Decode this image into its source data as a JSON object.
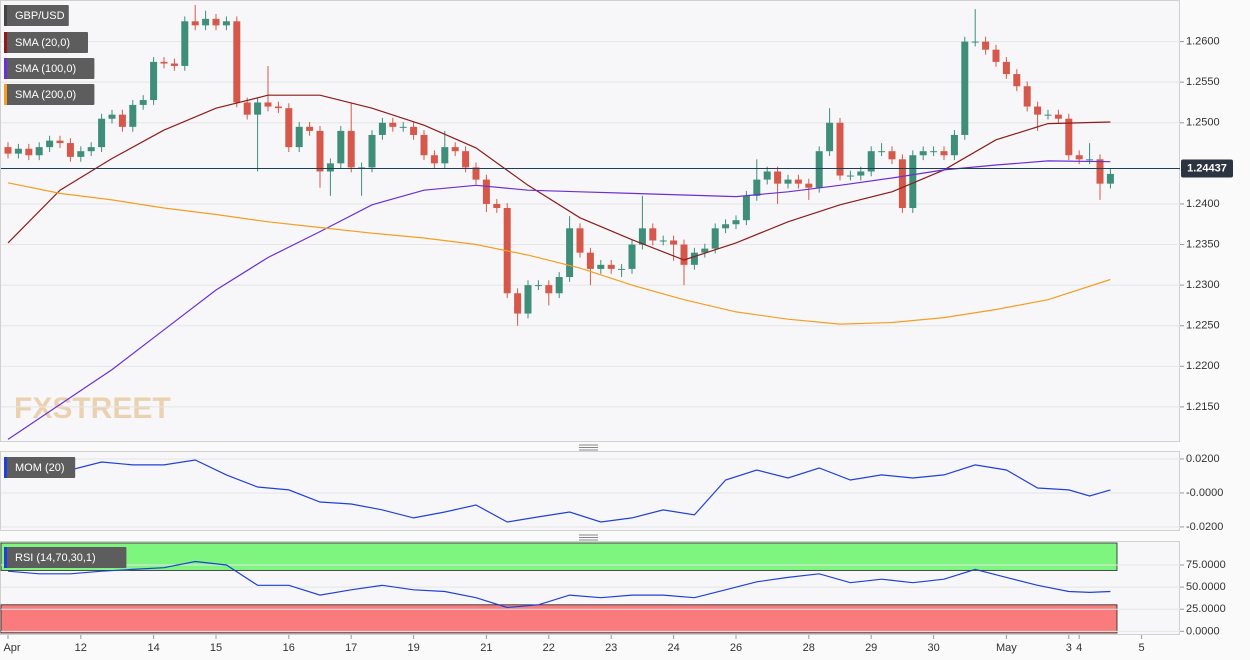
{
  "chart_data": [
    {
      "type": "candlestick",
      "title": "GBP/USD",
      "watermark": "FXSTREET",
      "categories": [
        "Apr",
        null,
        null,
        null,
        null,
        null,
        null,
        "12",
        null,
        null,
        null,
        null,
        null,
        null,
        "14",
        null,
        null,
        null,
        null,
        null,
        "15",
        null,
        null,
        null,
        null,
        null,
        null,
        "16",
        null,
        null,
        null,
        null,
        null,
        "17",
        null,
        null,
        null,
        null,
        null,
        "19",
        null,
        null,
        null,
        null,
        null,
        null,
        "21",
        null,
        null,
        null,
        null,
        null,
        "22",
        null,
        null,
        null,
        null,
        null,
        "23",
        null,
        null,
        null,
        null,
        null,
        "24",
        null,
        null,
        null,
        null,
        null,
        "26",
        null,
        null,
        null,
        null,
        null,
        null,
        "28",
        null,
        null,
        null,
        null,
        null,
        "29",
        null,
        null,
        null,
        null,
        null,
        "30",
        null,
        null,
        null,
        null,
        null,
        null,
        "May",
        null,
        null,
        null,
        null,
        null,
        "3",
        "4",
        null,
        null,
        null,
        null,
        null,
        "5"
      ],
      "candles": [
        [
          1.247,
          1.2476,
          1.2456,
          1.2462
        ],
        [
          1.2462,
          1.2474,
          1.2456,
          1.2468
        ],
        [
          1.2468,
          1.2474,
          1.2454,
          1.246
        ],
        [
          1.246,
          1.2476,
          1.2454,
          1.247
        ],
        [
          1.247,
          1.2484,
          1.2464,
          1.2478
        ],
        [
          1.2478,
          1.2484,
          1.2469,
          1.2475
        ],
        [
          1.2475,
          1.2481,
          1.2452,
          1.2458
        ],
        [
          1.2458,
          1.2471,
          1.2452,
          1.2465
        ],
        [
          1.2465,
          1.2476,
          1.2459,
          1.247
        ],
        [
          1.247,
          1.2511,
          1.2464,
          1.2505
        ],
        [
          1.2505,
          1.2516,
          1.2499,
          1.251
        ],
        [
          1.251,
          1.2516,
          1.2489,
          1.2495
        ],
        [
          1.2495,
          1.2528,
          1.2489,
          1.2522
        ],
        [
          1.2522,
          1.2534,
          1.2516,
          1.2528
        ],
        [
          1.2528,
          1.2581,
          1.2522,
          1.2575
        ],
        [
          1.2575,
          1.2581,
          1.2567,
          1.2573
        ],
        [
          1.2573,
          1.2579,
          1.2564,
          1.257
        ],
        [
          1.257,
          1.2631,
          1.2564,
          1.2625
        ],
        [
          1.2625,
          1.2645,
          1.2614,
          1.262
        ],
        [
          1.262,
          1.2638,
          1.2614,
          1.2628
        ],
        [
          1.2628,
          1.2634,
          1.2614,
          1.262
        ],
        [
          1.262,
          1.2631,
          1.2614,
          1.2625
        ],
        [
          1.2625,
          1.2631,
          1.2519,
          1.2525
        ],
        [
          1.2525,
          1.2531,
          1.2504,
          1.251
        ],
        [
          1.251,
          1.2531,
          1.244,
          1.2525
        ],
        [
          1.2525,
          1.257,
          1.2514,
          1.252
        ],
        [
          1.252,
          1.2526,
          1.2512,
          1.2518
        ],
        [
          1.2518,
          1.2524,
          1.2464,
          1.247
        ],
        [
          1.247,
          1.2501,
          1.2464,
          1.2495
        ],
        [
          1.2495,
          1.2501,
          1.2484,
          1.249
        ],
        [
          1.249,
          1.2496,
          1.242,
          1.244
        ],
        [
          1.244,
          1.2456,
          1.241,
          1.245
        ],
        [
          1.245,
          1.2496,
          1.2444,
          1.249
        ],
        [
          1.249,
          1.2525,
          1.2439,
          1.2445
        ],
        [
          1.2445,
          1.2451,
          1.241,
          1.2445
        ],
        [
          1.2445,
          1.2491,
          1.2439,
          1.2485
        ],
        [
          1.2485,
          1.2506,
          1.2479,
          1.25
        ],
        [
          1.25,
          1.2506,
          1.2489,
          1.2495
        ],
        [
          1.2495,
          1.2501,
          1.2489,
          1.2495
        ],
        [
          1.2495,
          1.2501,
          1.2479,
          1.2485
        ],
        [
          1.2485,
          1.2491,
          1.2454,
          1.246
        ],
        [
          1.246,
          1.2466,
          1.2444,
          1.245
        ],
        [
          1.245,
          1.249,
          1.2444,
          1.247
        ],
        [
          1.247,
          1.2476,
          1.2459,
          1.2465
        ],
        [
          1.2465,
          1.2471,
          1.2439,
          1.2445
        ],
        [
          1.2445,
          1.2451,
          1.2424,
          1.243
        ],
        [
          1.243,
          1.2436,
          1.239,
          1.24
        ],
        [
          1.24,
          1.2406,
          1.2389,
          1.2395
        ],
        [
          1.2395,
          1.2401,
          1.2284,
          1.229
        ],
        [
          1.229,
          1.2296,
          1.225,
          1.2265
        ],
        [
          1.2265,
          1.2306,
          1.2259,
          1.23
        ],
        [
          1.23,
          1.2306,
          1.2294,
          1.23
        ],
        [
          1.23,
          1.2306,
          1.2275,
          1.229
        ],
        [
          1.229,
          1.2316,
          1.2284,
          1.231
        ],
        [
          1.231,
          1.2385,
          1.2304,
          1.237
        ],
        [
          1.237,
          1.2376,
          1.2334,
          1.234
        ],
        [
          1.234,
          1.2346,
          1.23,
          1.232
        ],
        [
          1.232,
          1.2331,
          1.2314,
          1.2325
        ],
        [
          1.2325,
          1.2331,
          1.2314,
          1.232
        ],
        [
          1.232,
          1.2326,
          1.231,
          1.232
        ],
        [
          1.232,
          1.2356,
          1.2314,
          1.235
        ],
        [
          1.235,
          1.241,
          1.2344,
          1.237
        ],
        [
          1.237,
          1.2376,
          1.2349,
          1.2355
        ],
        [
          1.2355,
          1.2361,
          1.2349,
          1.2355
        ],
        [
          1.2355,
          1.2361,
          1.233,
          1.235
        ],
        [
          1.235,
          1.2356,
          1.23,
          1.2325
        ],
        [
          1.2325,
          1.2346,
          1.2319,
          1.234
        ],
        [
          1.234,
          1.2351,
          1.2334,
          1.2345
        ],
        [
          1.2345,
          1.2376,
          1.2339,
          1.237
        ],
        [
          1.237,
          1.2381,
          1.2364,
          1.2375
        ],
        [
          1.2375,
          1.2386,
          1.2369,
          1.238
        ],
        [
          1.238,
          1.2416,
          1.2374,
          1.241
        ],
        [
          1.241,
          1.2455,
          1.2404,
          1.243
        ],
        [
          1.243,
          1.2446,
          1.2424,
          1.244
        ],
        [
          1.244,
          1.2446,
          1.24,
          1.2425
        ],
        [
          1.2425,
          1.2436,
          1.2419,
          1.243
        ],
        [
          1.243,
          1.2436,
          1.2419,
          1.2425
        ],
        [
          1.2425,
          1.2431,
          1.2405,
          1.242
        ],
        [
          1.242,
          1.2471,
          1.2414,
          1.2465
        ],
        [
          1.2465,
          1.2518,
          1.2459,
          1.25
        ],
        [
          1.25,
          1.2506,
          1.2429,
          1.2435
        ],
        [
          1.2435,
          1.2441,
          1.2429,
          1.2435
        ],
        [
          1.2435,
          1.2446,
          1.2429,
          1.244
        ],
        [
          1.244,
          1.2471,
          1.2434,
          1.2465
        ],
        [
          1.2465,
          1.2475,
          1.2459,
          1.2465
        ],
        [
          1.2465,
          1.2471,
          1.2449,
          1.2455
        ],
        [
          1.2455,
          1.2461,
          1.2389,
          1.2395
        ],
        [
          1.2395,
          1.2466,
          1.2389,
          1.246
        ],
        [
          1.246,
          1.2471,
          1.2454,
          1.2465
        ],
        [
          1.2465,
          1.2471,
          1.2459,
          1.2465
        ],
        [
          1.2465,
          1.2471,
          1.2454,
          1.246
        ],
        [
          1.246,
          1.2491,
          1.2454,
          1.2485
        ],
        [
          1.2485,
          1.2606,
          1.2479,
          1.26
        ],
        [
          1.26,
          1.264,
          1.2594,
          1.26
        ],
        [
          1.26,
          1.2606,
          1.2584,
          1.259
        ],
        [
          1.259,
          1.2596,
          1.2569,
          1.2575
        ],
        [
          1.2575,
          1.2581,
          1.2554,
          1.256
        ],
        [
          1.256,
          1.2566,
          1.2539,
          1.2545
        ],
        [
          1.2545,
          1.2551,
          1.2514,
          1.252
        ],
        [
          1.252,
          1.2526,
          1.249,
          1.251
        ],
        [
          1.251,
          1.2516,
          1.2504,
          1.251
        ],
        [
          1.251,
          1.2516,
          1.2499,
          1.2505
        ],
        [
          1.2505,
          1.2511,
          1.2454,
          1.246
        ],
        [
          1.246,
          1.2466,
          1.2449,
          1.2455
        ],
        [
          1.2455,
          1.2475,
          1.2449,
          1.2455
        ],
        [
          1.2455,
          1.2461,
          1.2405,
          1.2425
        ],
        [
          1.2425,
          1.2443,
          1.2419,
          1.2437
        ],
        null,
        null,
        null
      ],
      "up_color": "#3e8e7a",
      "down_color": "#d5584a",
      "series": [
        {
          "name": "SMA (20,0)",
          "color": "#8e1b1b",
          "x": [
            0,
            5,
            10,
            15,
            20,
            25,
            30,
            35,
            40,
            45,
            50,
            55,
            60,
            65,
            70,
            75,
            80,
            85,
            90,
            95,
            100,
            106
          ],
          "values": [
            1.2352,
            1.2417,
            1.2456,
            1.2491,
            1.2518,
            1.2534,
            1.2534,
            1.2518,
            1.2497,
            1.2469,
            1.2423,
            1.2383,
            1.2356,
            1.2331,
            1.2352,
            1.2378,
            1.2399,
            1.2415,
            1.2442,
            1.2479,
            1.2499,
            1.2501
          ]
        },
        {
          "name": "SMA (100,0)",
          "color": "#6a2fd6",
          "x": [
            0,
            5,
            10,
            15,
            20,
            25,
            30,
            35,
            40,
            45,
            50,
            55,
            60,
            65,
            70,
            75,
            80,
            85,
            90,
            95,
            100,
            106
          ],
          "values": [
            1.211,
            1.2153,
            1.2196,
            1.2245,
            1.2294,
            1.2334,
            1.2366,
            1.2399,
            1.2417,
            1.2423,
            1.2417,
            1.2415,
            1.2413,
            1.2411,
            1.2409,
            1.2415,
            1.2423,
            1.2432,
            1.2442,
            1.2448,
            1.2453,
            1.2452
          ]
        },
        {
          "name": "SMA (200,0)",
          "color": "#f59e22",
          "x": [
            0,
            5,
            10,
            15,
            20,
            25,
            30,
            35,
            40,
            45,
            50,
            55,
            60,
            65,
            70,
            75,
            80,
            85,
            90,
            95,
            100,
            106
          ],
          "values": [
            1.2426,
            1.2413,
            1.2405,
            1.2395,
            1.2387,
            1.2378,
            1.2371,
            1.2364,
            1.2358,
            1.235,
            1.2337,
            1.2321,
            1.23,
            1.2282,
            1.2267,
            1.2258,
            1.2252,
            1.2254,
            1.226,
            1.227,
            1.2282,
            1.2307
          ]
        }
      ],
      "last_value": 1.24437,
      "ylim": [
        1.2108,
        1.265
      ],
      "yticks": [
        {
          "value": 1.215,
          "label": "1.2150"
        },
        {
          "value": 1.22,
          "label": "1.2200"
        },
        {
          "value": 1.225,
          "label": "1.2250"
        },
        {
          "value": 1.23,
          "label": "1.2300"
        },
        {
          "value": 1.235,
          "label": "1.2350"
        },
        {
          "value": 1.24,
          "label": "1.2400"
        },
        {
          "value": 1.25,
          "label": "1.2500"
        },
        {
          "value": 1.255,
          "label": "1.2550"
        },
        {
          "value": 1.26,
          "label": "1.2600"
        }
      ],
      "grid": true
    },
    {
      "type": "line",
      "title": "MOM (20)",
      "series": [
        {
          "name": "MOM (20)",
          "color": "#2140d8",
          "x": [
            0,
            3,
            6,
            9,
            12,
            15,
            18,
            21,
            24,
            27,
            30,
            33,
            36,
            39,
            42,
            45,
            48,
            51,
            54,
            57,
            60,
            63,
            66,
            69,
            72,
            75,
            78,
            81,
            84,
            87,
            90,
            93,
            96,
            99,
            102,
            104,
            106
          ],
          "values": [
            0.0165,
            0.0206,
            0.0135,
            0.0182,
            0.0165,
            0.0165,
            0.0194,
            0.0106,
            0.0035,
            0.0018,
            -0.0053,
            -0.0065,
            -0.01,
            -0.0147,
            -0.0112,
            -0.0071,
            -0.0171,
            -0.0141,
            -0.0112,
            -0.0171,
            -0.0147,
            -0.01,
            -0.0129,
            0.0076,
            0.0135,
            0.0088,
            0.0147,
            0.0076,
            0.0106,
            0.0088,
            0.0106,
            0.0165,
            0.0135,
            0.0029,
            0.0018,
            -0.0018,
            0.0018
          ]
        }
      ],
      "ylim": [
        -0.0218,
        0.0241
      ],
      "yticks": [
        {
          "value": -0.02,
          "label": "-0.0200"
        },
        {
          "value": 0,
          "label": "-0.0000"
        },
        {
          "value": 0.02,
          "label": "0.0200"
        }
      ],
      "grid": true
    },
    {
      "type": "line",
      "title": "RSI (14,70,30,1)",
      "series": [
        {
          "name": "RSI (14,70,30,1)",
          "color": "#2140d8",
          "x": [
            0,
            3,
            6,
            9,
            12,
            15,
            18,
            21,
            24,
            27,
            30,
            33,
            36,
            39,
            42,
            45,
            48,
            51,
            54,
            57,
            60,
            63,
            66,
            69,
            72,
            75,
            78,
            81,
            84,
            87,
            90,
            93,
            96,
            99,
            102,
            104,
            106
          ],
          "values": [
            68,
            65,
            65,
            68,
            70,
            72,
            79,
            75,
            52,
            52,
            41,
            47,
            52,
            47,
            45,
            38,
            27,
            30,
            41,
            38,
            41,
            41,
            38,
            47,
            56,
            61,
            65,
            55,
            59,
            55,
            59,
            70,
            61,
            52,
            45,
            44,
            45
          ]
        }
      ],
      "overbought": 70,
      "oversold": 30,
      "overbought_color": "#7ef57e",
      "oversold_color": "#f97b7b",
      "ylim": [
        -3,
        101
      ],
      "yticks": [
        {
          "value": 0,
          "label": "0.0000"
        },
        {
          "value": 25,
          "label": "25.0000"
        },
        {
          "value": 50,
          "label": "50.0000"
        },
        {
          "value": 75,
          "label": "75.0000"
        }
      ],
      "grid": true
    }
  ]
}
